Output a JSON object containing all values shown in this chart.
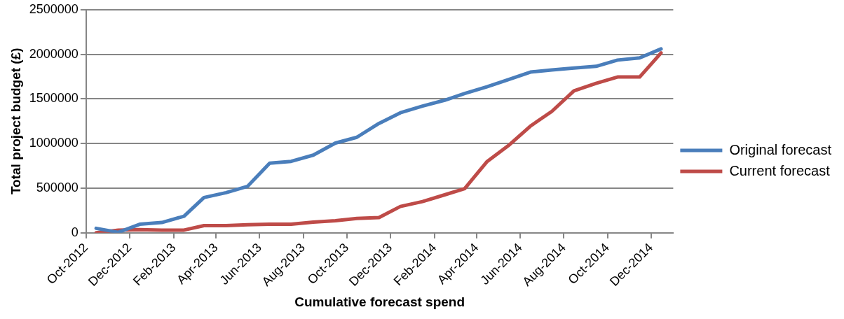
{
  "chart_data": {
    "type": "line",
    "xlabel": "Cumulative forecast spend",
    "ylabel": "Total project budget (£)",
    "x": [
      "2012-10-15",
      "2012-11-15",
      "2012-12-15",
      "2013-01-15",
      "2013-02-15",
      "2013-03-15",
      "2013-04-15",
      "2013-05-15",
      "2013-06-15",
      "2013-07-15",
      "2013-08-15",
      "2013-09-15",
      "2013-10-15",
      "2013-11-15",
      "2013-12-15",
      "2014-01-15",
      "2014-02-15",
      "2014-03-15",
      "2014-04-15",
      "2014-05-15",
      "2014-06-15",
      "2014-07-15",
      "2014-08-15",
      "2014-09-15",
      "2014-10-15",
      "2014-11-15",
      "2014-12-15"
    ],
    "series": [
      {
        "name": "Original forecast",
        "color": "#4a7ebb",
        "values": [
          50000,
          5000,
          95000,
          115000,
          185000,
          395000,
          450000,
          520000,
          780000,
          800000,
          870000,
          1005000,
          1070000,
          1225000,
          1345000,
          1420000,
          1485000,
          1560000,
          1635000,
          1715000,
          1800000,
          1825000,
          1845000,
          1865000,
          1935000,
          1960000,
          2060000
        ]
      },
      {
        "name": "Current forecast",
        "color": "#be4b48",
        "values": [
          0,
          30000,
          35000,
          30000,
          30000,
          80000,
          80000,
          90000,
          95000,
          95000,
          120000,
          135000,
          160000,
          170000,
          295000,
          350000,
          425000,
          495000,
          795000,
          975000,
          1195000,
          1360000,
          1590000,
          1675000,
          1745000,
          1745000,
          2015000
        ]
      }
    ],
    "xlim": [
      "2012-10",
      "2015-01"
    ],
    "xticks": [
      {
        "value": "2012-10",
        "label": "Oct-2012"
      },
      {
        "value": "2012-12",
        "label": "Dec-2012"
      },
      {
        "value": "2013-02",
        "label": "Feb-2013"
      },
      {
        "value": "2013-04",
        "label": "Apr-2013"
      },
      {
        "value": "2013-06",
        "label": "Jun-2013"
      },
      {
        "value": "2013-08",
        "label": "Aug-2013"
      },
      {
        "value": "2013-10",
        "label": "Oct-2013"
      },
      {
        "value": "2013-12",
        "label": "Dec-2013"
      },
      {
        "value": "2014-02",
        "label": "Feb-2014"
      },
      {
        "value": "2014-04",
        "label": "Apr-2014"
      },
      {
        "value": "2014-06",
        "label": "Jun-2014"
      },
      {
        "value": "2014-08",
        "label": "Aug-2014"
      },
      {
        "value": "2014-10",
        "label": "Oct-2014"
      },
      {
        "value": "2014-12",
        "label": "Dec-2014"
      }
    ],
    "ylim": [
      0,
      2500000
    ],
    "yticks": [
      0,
      500000,
      1000000,
      1500000,
      2000000,
      2500000
    ],
    "grid": "y",
    "legend": "right",
    "marker": "none",
    "line_style": "solid"
  }
}
